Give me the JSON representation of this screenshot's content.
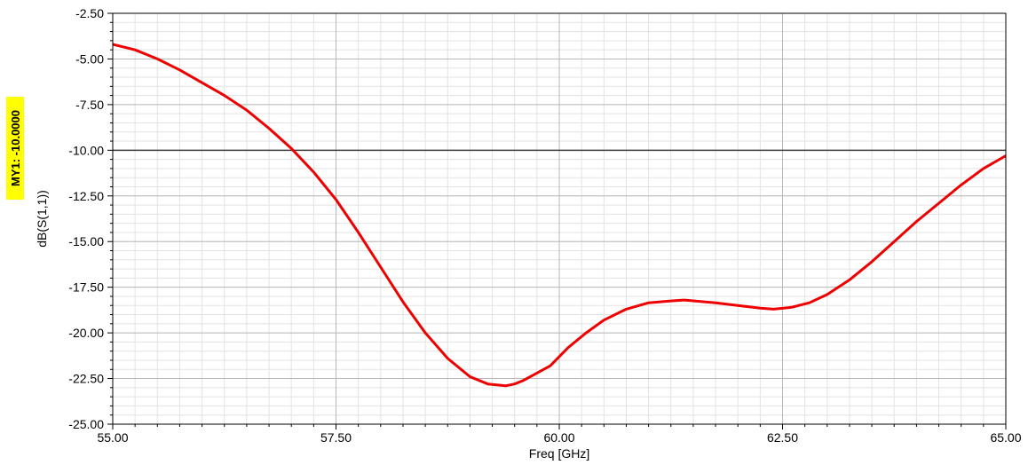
{
  "chart_data": {
    "type": "line",
    "title": "",
    "xlabel": "Freq [GHz]",
    "ylabel": "dB(S(1,1))",
    "xlim": [
      55.0,
      65.0
    ],
    "ylim": [
      -25.0,
      -2.5
    ],
    "x_ticks": [
      55.0,
      57.5,
      60.0,
      62.5,
      65.0
    ],
    "x_tick_labels": [
      "55.00",
      "57.50",
      "60.00",
      "62.50",
      "65.00"
    ],
    "y_ticks": [
      -2.5,
      -5.0,
      -7.5,
      -10.0,
      -12.5,
      -15.0,
      -17.5,
      -20.0,
      -22.5,
      -25.0
    ],
    "y_tick_labels": [
      "-2.50",
      "-5.00",
      "-7.50",
      "-10.00",
      "-12.50",
      "-15.00",
      "-17.50",
      "-20.00",
      "-22.50",
      "-25.00"
    ],
    "grid": true,
    "legend": "none",
    "series": [
      {
        "color": "#ee0000",
        "x": [
          55.0,
          55.25,
          55.5,
          55.75,
          56.0,
          56.25,
          56.5,
          56.75,
          57.0,
          57.25,
          57.5,
          57.75,
          58.0,
          58.25,
          58.5,
          58.75,
          59.0,
          59.2,
          59.4,
          59.5,
          59.6,
          59.75,
          59.9,
          60.1,
          60.3,
          60.5,
          60.75,
          61.0,
          61.25,
          61.4,
          61.75,
          62.0,
          62.25,
          62.4,
          62.6,
          62.8,
          63.0,
          63.25,
          63.5,
          63.75,
          64.0,
          64.25,
          64.5,
          64.75,
          65.0
        ],
        "y": [
          -4.2,
          -4.5,
          -5.0,
          -5.6,
          -6.3,
          -7.0,
          -7.8,
          -8.8,
          -9.9,
          -11.2,
          -12.7,
          -14.5,
          -16.4,
          -18.3,
          -20.0,
          -21.4,
          -22.4,
          -22.8,
          -22.9,
          -22.8,
          -22.6,
          -22.2,
          -21.8,
          -20.8,
          -20.0,
          -19.3,
          -18.7,
          -18.35,
          -18.25,
          -18.2,
          -18.35,
          -18.5,
          -18.65,
          -18.7,
          -18.6,
          -18.35,
          -17.9,
          -17.1,
          -16.1,
          -15.0,
          -13.9,
          -12.9,
          -11.9,
          -11.0,
          -10.3
        ]
      }
    ],
    "marker": {
      "label": "MY1: -10.0000",
      "y": -10.0,
      "line_color": "#404040",
      "bg_color": "#ffff00"
    }
  }
}
